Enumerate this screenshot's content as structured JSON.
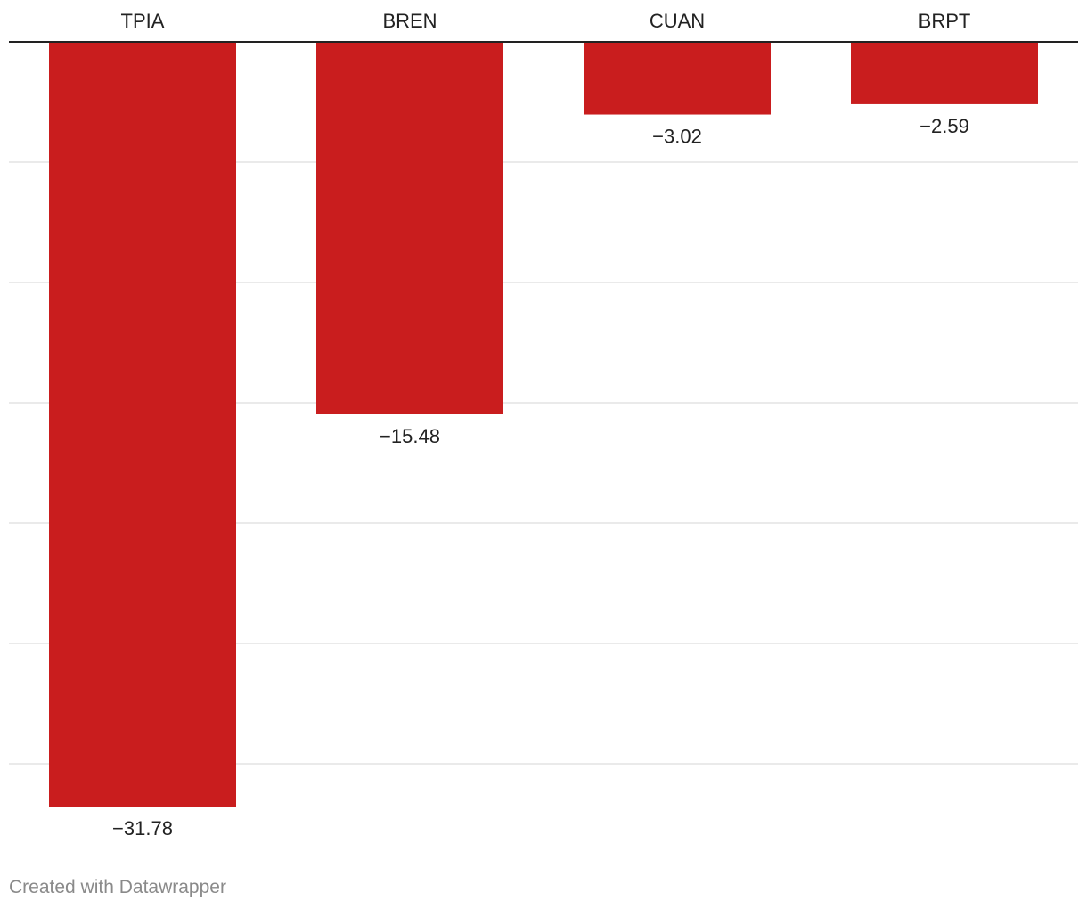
{
  "chart_data": {
    "type": "bar",
    "orientation": "vertical",
    "categories": [
      "TPIA",
      "BREN",
      "CUAN",
      "BRPT"
    ],
    "values": [
      -31.78,
      -15.48,
      -3.02,
      -2.59
    ],
    "value_labels": [
      "−31.78",
      "−15.48",
      "−3.02",
      "−2.59"
    ],
    "title": "",
    "xlabel": "",
    "ylabel": "",
    "ylim": [
      -32.5,
      0
    ],
    "gridlines": [
      -5,
      -10,
      -15,
      -20,
      -25,
      -30
    ],
    "grid": true,
    "legend": "none",
    "category_axis_position": "top",
    "bar_color": "#c91d1e",
    "gridline_color": "#e3e3e3",
    "axis_color": "#222222"
  },
  "footer": {
    "credit": "Created with Datawrapper"
  }
}
